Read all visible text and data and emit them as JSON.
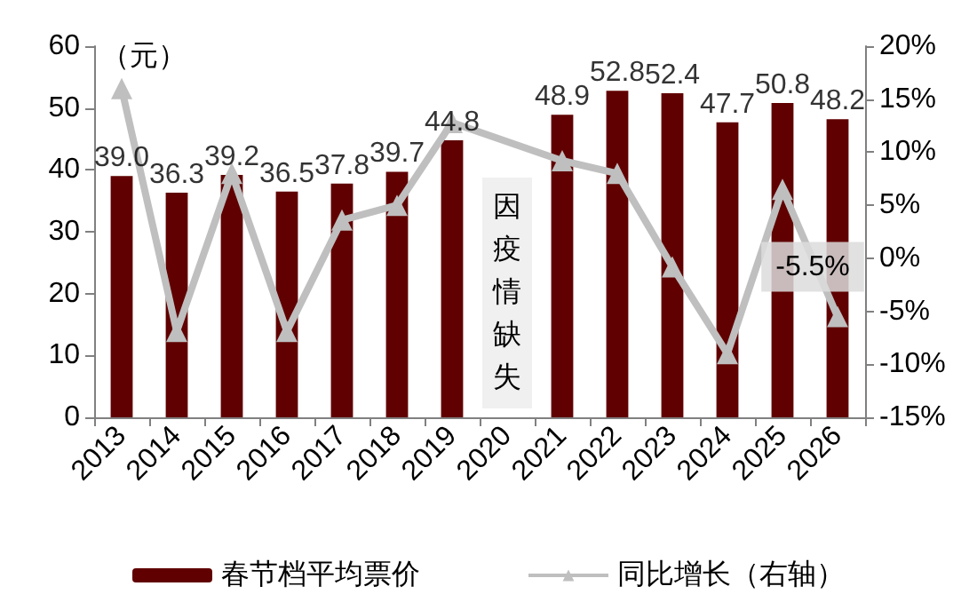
{
  "chart_data": {
    "type": "bar",
    "ylabel": "（元）",
    "categories": [
      "2013",
      "2014",
      "2015",
      "2016",
      "2017",
      "2018",
      "2019",
      "2020",
      "2021",
      "2022",
      "2023",
      "2024",
      "2025",
      "2026"
    ],
    "series": [
      {
        "name": "春节档平均票价",
        "color": "#600000",
        "values": [
          39.0,
          36.3,
          39.2,
          36.5,
          37.8,
          39.7,
          44.8,
          null,
          48.9,
          52.8,
          52.4,
          47.7,
          50.8,
          48.2
        ],
        "value_labels": [
          "39.0",
          "36.3",
          "39.2",
          "36.5",
          "37.8",
          "39.7",
          "44.8",
          null,
          "48.9",
          "52.8",
          "52.4",
          "47.7",
          "50.8",
          "48.2"
        ]
      },
      {
        "name": "同比增长（右轴）",
        "type": "line",
        "axis": "y2",
        "color": "#bfbfbf",
        "marker": "triangle",
        "values": [
          16,
          -6.9,
          8.0,
          -6.9,
          3.6,
          5.0,
          12.8,
          null,
          9.2,
          8.0,
          -0.8,
          -9.0,
          6.5,
          -5.5
        ],
        "value_labels": [
          null,
          null,
          null,
          null,
          null,
          null,
          null,
          null,
          null,
          null,
          null,
          null,
          null,
          "-5.5%"
        ]
      }
    ],
    "ylim": [
      0,
      60
    ],
    "yticks": [
      0,
      10,
      20,
      30,
      40,
      50,
      60
    ],
    "y2lim": [
      -15,
      20
    ],
    "y2ticks": [
      {
        "value": -15,
        "label": "-15%"
      },
      {
        "value": -10,
        "label": "-10%"
      },
      {
        "value": -5,
        "label": "-5%"
      },
      {
        "value": 0,
        "label": "0%"
      },
      {
        "value": 5,
        "label": "5%"
      },
      {
        "value": 10,
        "label": "10%"
      },
      {
        "value": 15,
        "label": "15%"
      },
      {
        "value": 20,
        "label": "20%"
      }
    ],
    "annotations": [
      "因疫情缺失"
    ],
    "grid": false,
    "legend": "bottom"
  }
}
